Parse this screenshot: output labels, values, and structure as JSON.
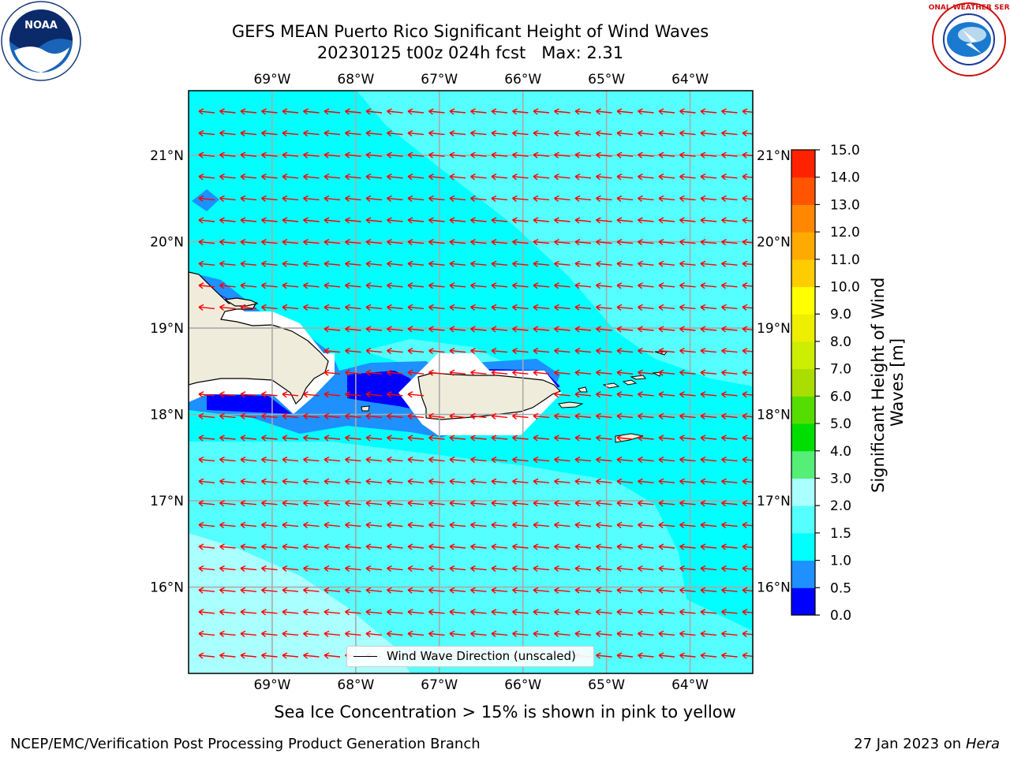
{
  "title": {
    "line1": "GEFS MEAN Puerto Rico Significant Height of Wind Waves",
    "line2": "20230125 t00z 024h fcst   Max: 2.31"
  },
  "logos": {
    "left": {
      "name": "noaa-logo",
      "text": "NOAA"
    },
    "right": {
      "name": "nws-logo",
      "text": "NATIONAL WEATHER SERVICE"
    }
  },
  "map": {
    "lon_labels": [
      "69°W",
      "68°W",
      "67°W",
      "66°W",
      "65°W",
      "64°W"
    ],
    "lat_labels": [
      "21°N",
      "20°N",
      "19°N",
      "18°N",
      "17°N",
      "16°N"
    ],
    "lon_range": [
      -70.0,
      -63.25
    ],
    "lat_range": [
      15.0,
      21.75
    ],
    "gridlines": true,
    "land_color": "#efecdc",
    "arrow_color": "#ff0000",
    "arrow_direction": "westward"
  },
  "colorbar": {
    "title": "Significant Height of Wind Waves [m]",
    "ticks": [
      "0.0",
      "0.5",
      "1.0",
      "1.5",
      "2.0",
      "3.0",
      "4.0",
      "5.0",
      "6.0",
      "7.0",
      "8.0",
      "9.0",
      "10.0",
      "11.0",
      "12.0",
      "13.0",
      "14.0",
      "15.0"
    ],
    "colors": [
      "#0000ff",
      "#1e90ff",
      "#00ffff",
      "#55ffff",
      "#aaffff",
      "#55ee77",
      "#00dd00",
      "#55dd00",
      "#aadd00",
      "#ccee00",
      "#eeee00",
      "#ffff00",
      "#ffcc00",
      "#ffaa00",
      "#ff8800",
      "#ff5500",
      "#ff2200",
      "#ff0000"
    ]
  },
  "legend": {
    "label": "Wind Wave Direction (unscaled)"
  },
  "footer": {
    "note": "Sea Ice Concentration > 15% is shown in pink to yellow",
    "credit_left": "NCEP/EMC/Verification Post Processing Product Generation Branch",
    "credit_right_prefix": "27 Jan 2023 on",
    "credit_right_host": "Hera"
  }
}
